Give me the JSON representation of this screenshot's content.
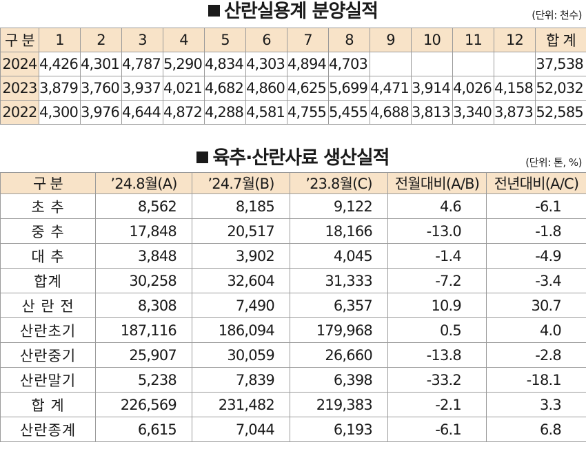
{
  "table1": {
    "title": "산란실용계 분양실적",
    "unit": "(단위: 천수)",
    "headers": [
      "구 분",
      "1",
      "2",
      "3",
      "4",
      "5",
      "6",
      "7",
      "8",
      "9",
      "10",
      "11",
      "12",
      "합 계"
    ],
    "rows": [
      [
        "2024",
        "4,426",
        "4,301",
        "4,787",
        "5,290",
        "4,834",
        "4,303",
        "4,894",
        "4,703",
        "",
        "",
        "",
        "",
        "37,538"
      ],
      [
        "2023",
        "3,879",
        "3,760",
        "3,937",
        "4,021",
        "4,682",
        "4,860",
        "4,625",
        "5,699",
        "4,471",
        "3,914",
        "4,026",
        "4,158",
        "52,032"
      ],
      [
        "2022",
        "4,300",
        "3,976",
        "4,644",
        "4,872",
        "4,288",
        "4,581",
        "4,755",
        "5,455",
        "4,688",
        "3,813",
        "3,340",
        "3,873",
        "52,585"
      ]
    ]
  },
  "table2": {
    "title": "육추·산란사료 생산실적",
    "unit": "(단위: 톤, %)",
    "headers": [
      "구 분",
      "’24.8월(A)",
      "’24.7월(B)",
      "’23.8월(C)",
      "전월대비(A/B)",
      "전년대비(A/C)"
    ],
    "rows": [
      [
        "초 추",
        "8,562",
        "8,185",
        "9,122",
        "4.6",
        "-6.1"
      ],
      [
        "중 추",
        "17,848",
        "20,517",
        "18,166",
        "-13.0",
        "-1.8"
      ],
      [
        "대 추",
        "3,848",
        "3,902",
        "4,045",
        "-1.4",
        "-4.9"
      ],
      [
        "합계",
        "30,258",
        "32,604",
        "31,333",
        "-7.2",
        "-3.4"
      ],
      [
        "산 란 전",
        "8,308",
        "7,490",
        "6,357",
        "10.9",
        "30.7"
      ],
      [
        "산란초기",
        "187,116",
        "186,094",
        "179,968",
        "0.5",
        "4.0"
      ],
      [
        "산란중기",
        "25,907",
        "30,059",
        "26,660",
        "-13.8",
        "-2.8"
      ],
      [
        "산란말기",
        "5,238",
        "7,839",
        "6,398",
        "-33.2",
        "-18.1"
      ],
      [
        "합 계",
        "226,569",
        "231,482",
        "219,383",
        "-2.1",
        "3.3"
      ],
      [
        "산란종계",
        "6,615",
        "7,044",
        "6,193",
        "-6.1",
        "6.8"
      ]
    ]
  }
}
